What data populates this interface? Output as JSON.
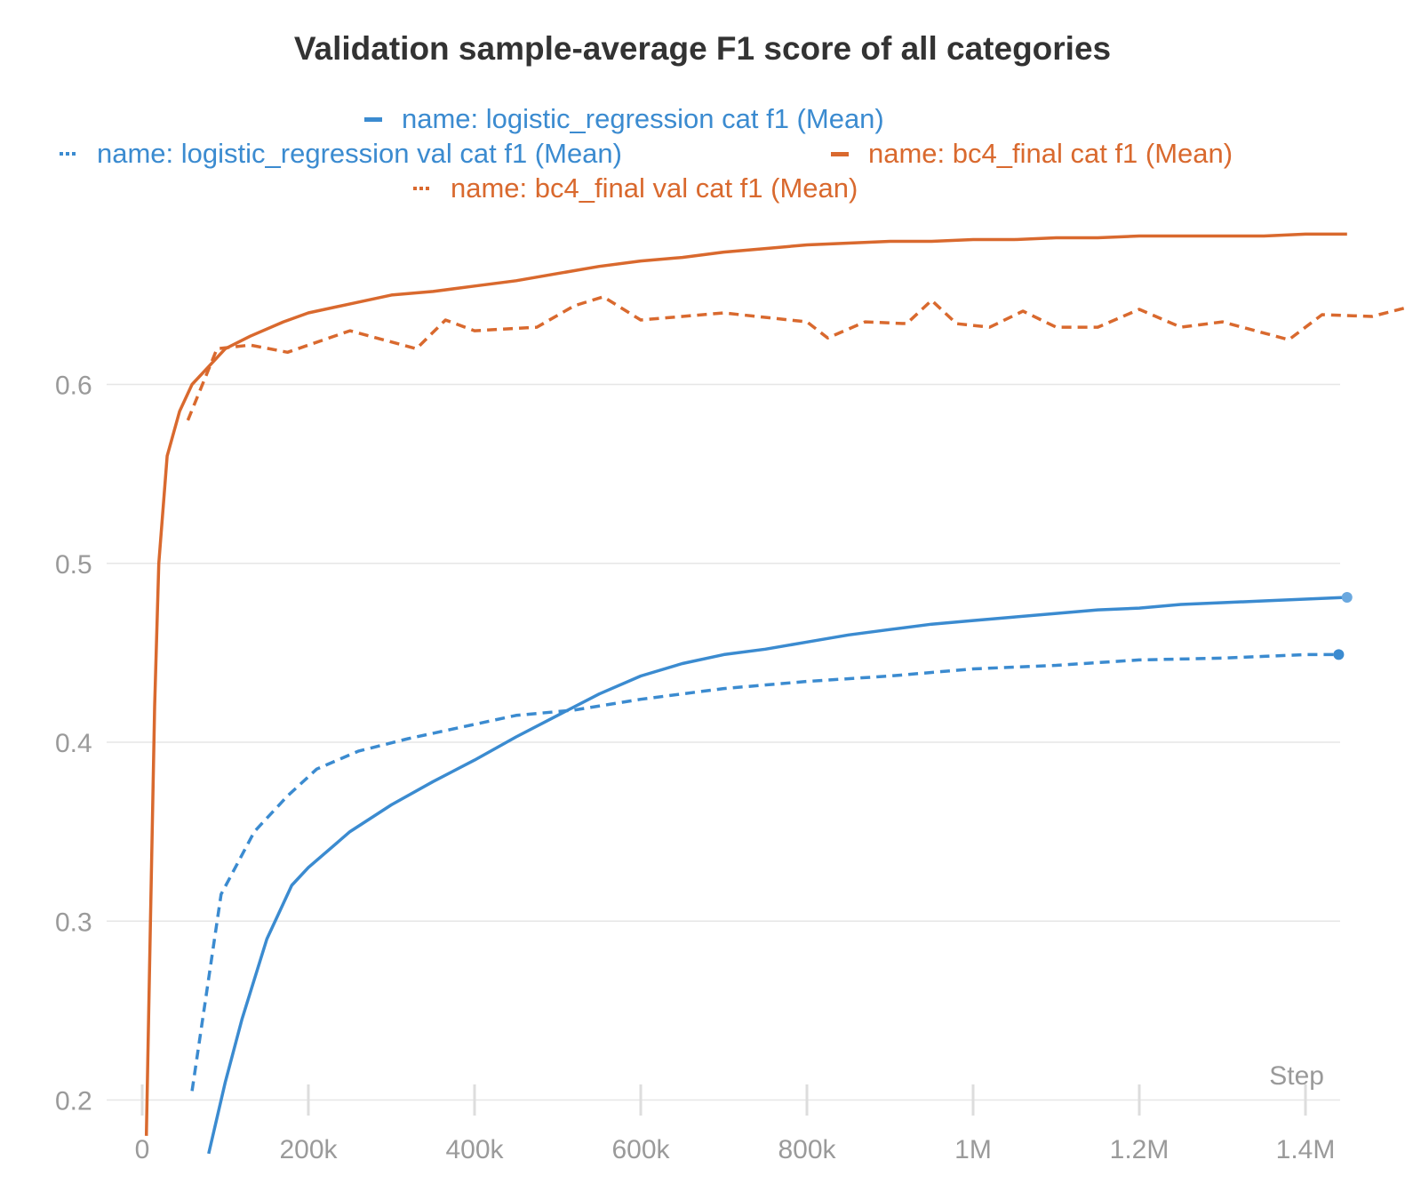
{
  "chart_data": {
    "type": "line",
    "title": "Validation sample-average F1 score of all categories",
    "xlabel": "Step",
    "ylabel": "",
    "xlim": [
      0,
      1450000
    ],
    "ylim": [
      0.175,
      0.705
    ],
    "x_ticks": [
      0,
      200000,
      400000,
      600000,
      800000,
      1000000,
      1200000,
      1400000
    ],
    "x_tick_labels": [
      "0",
      "200k",
      "400k",
      "600k",
      "800k",
      "1M",
      "1.2M",
      "1.4M"
    ],
    "y_ticks": [
      0.2,
      0.3,
      0.4,
      0.5,
      0.6
    ],
    "y_tick_labels": [
      "0.2",
      "0.3",
      "0.4",
      "0.5",
      "0.6"
    ],
    "grid": true,
    "legend_position": "top",
    "series": [
      {
        "name": "name: logistic_regression cat f1 (Mean)",
        "color": "#3b8bd0",
        "style": "solid",
        "end_marker": true,
        "points": [
          [
            80000,
            0.17
          ],
          [
            100000,
            0.21
          ],
          [
            120000,
            0.245
          ],
          [
            150000,
            0.29
          ],
          [
            180000,
            0.32
          ],
          [
            200000,
            0.33
          ],
          [
            250000,
            0.35
          ],
          [
            300000,
            0.365
          ],
          [
            350000,
            0.378
          ],
          [
            400000,
            0.39
          ],
          [
            450000,
            0.403
          ],
          [
            500000,
            0.415
          ],
          [
            550000,
            0.427
          ],
          [
            600000,
            0.437
          ],
          [
            650000,
            0.444
          ],
          [
            700000,
            0.449
          ],
          [
            750000,
            0.452
          ],
          [
            800000,
            0.456
          ],
          [
            850000,
            0.46
          ],
          [
            900000,
            0.463
          ],
          [
            950000,
            0.466
          ],
          [
            1000000,
            0.468
          ],
          [
            1050000,
            0.47
          ],
          [
            1100000,
            0.472
          ],
          [
            1150000,
            0.474
          ],
          [
            1200000,
            0.475
          ],
          [
            1250000,
            0.477
          ],
          [
            1300000,
            0.478
          ],
          [
            1350000,
            0.479
          ],
          [
            1400000,
            0.48
          ],
          [
            1450000,
            0.481
          ]
        ]
      },
      {
        "name": "name: logistic_regression val cat f1 (Mean)",
        "color": "#3b8bd0",
        "style": "dotted",
        "end_marker": true,
        "points": [
          [
            60000,
            0.205
          ],
          [
            95000,
            0.315
          ],
          [
            135000,
            0.35
          ],
          [
            175000,
            0.37
          ],
          [
            210000,
            0.385
          ],
          [
            260000,
            0.395
          ],
          [
            320000,
            0.402
          ],
          [
            380000,
            0.408
          ],
          [
            450000,
            0.415
          ],
          [
            520000,
            0.418
          ],
          [
            600000,
            0.424
          ],
          [
            700000,
            0.43
          ],
          [
            800000,
            0.434
          ],
          [
            900000,
            0.437
          ],
          [
            1000000,
            0.441
          ],
          [
            1100000,
            0.443
          ],
          [
            1200000,
            0.446
          ],
          [
            1300000,
            0.447
          ],
          [
            1350000,
            0.448
          ],
          [
            1400000,
            0.449
          ],
          [
            1440000,
            0.449
          ]
        ]
      },
      {
        "name": "name: bc4_final cat f1 (Mean)",
        "color": "#d9692e",
        "style": "solid",
        "end_marker": false,
        "points": [
          [
            5000,
            0.18
          ],
          [
            10000,
            0.3
          ],
          [
            15000,
            0.42
          ],
          [
            20000,
            0.5
          ],
          [
            30000,
            0.56
          ],
          [
            45000,
            0.585
          ],
          [
            60000,
            0.6
          ],
          [
            80000,
            0.61
          ],
          [
            100000,
            0.62
          ],
          [
            130000,
            0.627
          ],
          [
            170000,
            0.635
          ],
          [
            200000,
            0.64
          ],
          [
            250000,
            0.645
          ],
          [
            300000,
            0.65
          ],
          [
            350000,
            0.652
          ],
          [
            400000,
            0.655
          ],
          [
            450000,
            0.658
          ],
          [
            500000,
            0.662
          ],
          [
            550000,
            0.666
          ],
          [
            600000,
            0.669
          ],
          [
            650000,
            0.671
          ],
          [
            700000,
            0.674
          ],
          [
            750000,
            0.676
          ],
          [
            800000,
            0.678
          ],
          [
            850000,
            0.679
          ],
          [
            900000,
            0.68
          ],
          [
            950000,
            0.68
          ],
          [
            1000000,
            0.681
          ],
          [
            1050000,
            0.681
          ],
          [
            1100000,
            0.682
          ],
          [
            1150000,
            0.682
          ],
          [
            1200000,
            0.683
          ],
          [
            1250000,
            0.683
          ],
          [
            1300000,
            0.683
          ],
          [
            1350000,
            0.683
          ],
          [
            1400000,
            0.684
          ],
          [
            1450000,
            0.684
          ]
        ]
      },
      {
        "name": "name: bc4_final val cat f1 (Mean)",
        "color": "#d9692e",
        "style": "dotted",
        "end_marker": false,
        "points": [
          [
            55000,
            0.58
          ],
          [
            90000,
            0.62
          ],
          [
            130000,
            0.622
          ],
          [
            175000,
            0.618
          ],
          [
            250000,
            0.63
          ],
          [
            330000,
            0.62
          ],
          [
            365000,
            0.636
          ],
          [
            400000,
            0.63
          ],
          [
            475000,
            0.632
          ],
          [
            520000,
            0.644
          ],
          [
            555000,
            0.649
          ],
          [
            600000,
            0.636
          ],
          [
            700000,
            0.64
          ],
          [
            800000,
            0.635
          ],
          [
            825000,
            0.626
          ],
          [
            870000,
            0.635
          ],
          [
            920000,
            0.634
          ],
          [
            950000,
            0.647
          ],
          [
            980000,
            0.634
          ],
          [
            1020000,
            0.632
          ],
          [
            1060000,
            0.641
          ],
          [
            1100000,
            0.632
          ],
          [
            1150000,
            0.632
          ],
          [
            1200000,
            0.642
          ],
          [
            1250000,
            0.632
          ],
          [
            1300000,
            0.635
          ],
          [
            1380000,
            0.625
          ],
          [
            1420000,
            0.639
          ],
          [
            1480000,
            0.638
          ],
          [
            1530000,
            0.644
          ],
          [
            1560000,
            0.64
          ]
        ]
      }
    ]
  }
}
